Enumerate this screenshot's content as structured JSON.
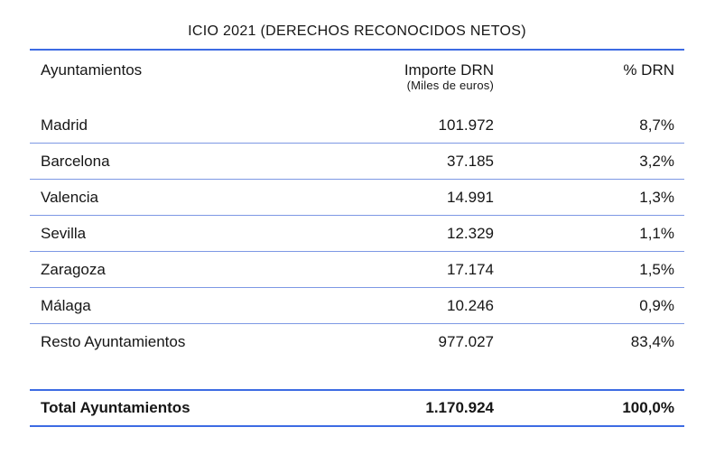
{
  "title": "ICIO 2021 (DERECHOS RECONOCIDOS NETOS)",
  "colors": {
    "accent_strong": "#3d6be3",
    "accent_light": "#7d98e4",
    "text_color": "#161616"
  },
  "table": {
    "headers": {
      "col1": "Ayuntamientos",
      "col2": "Importe DRN",
      "col2_sub": "(Miles de euros)",
      "col3": "% DRN"
    },
    "rows": [
      {
        "name": "Madrid",
        "importe": "101.972",
        "pct": "8,7%"
      },
      {
        "name": "Barcelona",
        "importe": "37.185",
        "pct": "3,2%"
      },
      {
        "name": "Valencia",
        "importe": "14.991",
        "pct": "1,3%"
      },
      {
        "name": "Sevilla",
        "importe": "12.329",
        "pct": "1,1%"
      },
      {
        "name": "Zaragoza",
        "importe": "17.174",
        "pct": "1,5%"
      },
      {
        "name": "Málaga",
        "importe": "10.246",
        "pct": "0,9%"
      },
      {
        "name": "Resto Ayuntamientos",
        "importe": "977.027",
        "pct": "83,4%"
      }
    ],
    "total": {
      "name": "Total Ayuntamientos",
      "importe": "1.170.924",
      "pct": "100,0%"
    }
  },
  "chart_data": {
    "type": "table",
    "title": "ICIO 2021 (DERECHOS RECONOCIDOS NETOS)",
    "columns": [
      "Ayuntamientos",
      "Importe DRN (Miles de euros)",
      "% DRN"
    ],
    "rows": [
      {
        "ayuntamiento": "Madrid",
        "importe_drn_miles_euros": 101972,
        "pct_drn": 8.7
      },
      {
        "ayuntamiento": "Barcelona",
        "importe_drn_miles_euros": 37185,
        "pct_drn": 3.2
      },
      {
        "ayuntamiento": "Valencia",
        "importe_drn_miles_euros": 14991,
        "pct_drn": 1.3
      },
      {
        "ayuntamiento": "Sevilla",
        "importe_drn_miles_euros": 12329,
        "pct_drn": 1.1
      },
      {
        "ayuntamiento": "Zaragoza",
        "importe_drn_miles_euros": 17174,
        "pct_drn": 1.5
      },
      {
        "ayuntamiento": "Málaga",
        "importe_drn_miles_euros": 10246,
        "pct_drn": 0.9
      },
      {
        "ayuntamiento": "Resto Ayuntamientos",
        "importe_drn_miles_euros": 977027,
        "pct_drn": 83.4
      }
    ],
    "total_row": {
      "ayuntamiento": "Total Ayuntamientos",
      "importe_drn_miles_euros": 1170924,
      "pct_drn": 100.0
    },
    "layout_hints": {
      "number_alignment": "right",
      "locale_format": "es-ES (dot thousands separator, comma decimal)",
      "separator_color_thin": "#7d98e4",
      "separator_color_thick": "#3d6be3",
      "total_row_bold": true
    }
  }
}
